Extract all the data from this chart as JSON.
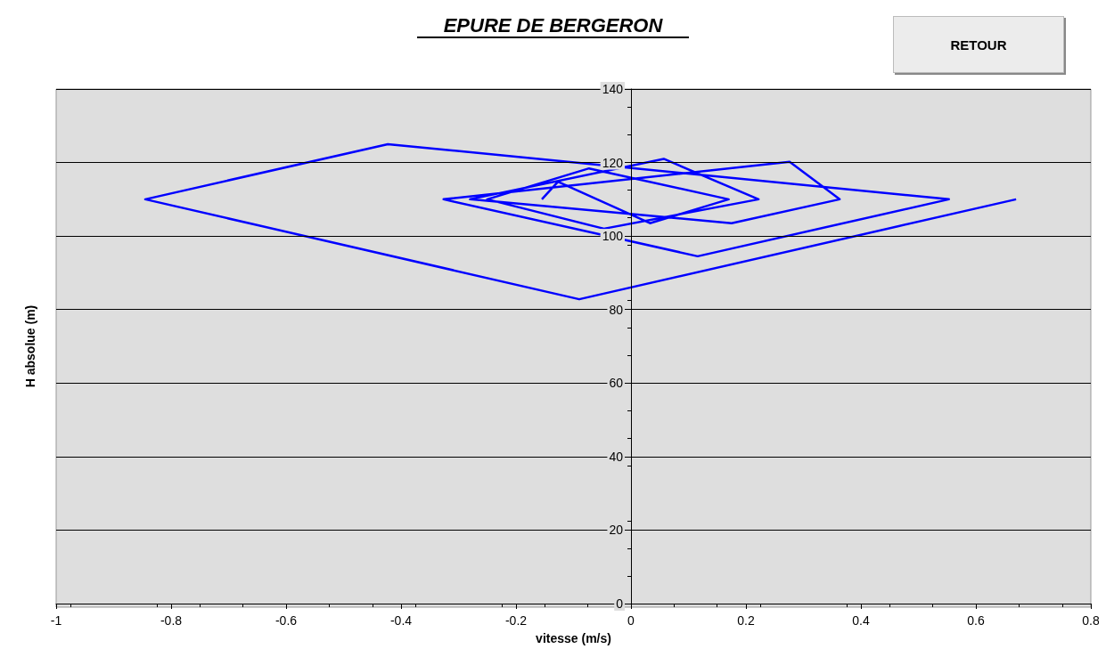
{
  "chart_data": {
    "type": "line",
    "title": "EPURE DE BERGERON",
    "xlabel": "vitesse (m/s)",
    "ylabel": "H absolue (m)",
    "annotations": [
      "RETOUR"
    ],
    "series": [
      {
        "color": "#0000ff",
        "x": [
          0.67,
          -0.09,
          -0.845,
          -0.423,
          0.553,
          0.116,
          -0.326,
          0.276,
          0.363,
          0.175,
          -0.28,
          0.057,
          0.222,
          -0.047,
          -0.25,
          -0.073,
          0.17,
          0.033,
          -0.127,
          -0.155
        ],
        "values": [
          110,
          82.8,
          110,
          125,
          110,
          94.5,
          110,
          120.2,
          110,
          103.5,
          110,
          121,
          110,
          102,
          110,
          118.4,
          110,
          103.5,
          114.8,
          110
        ]
      }
    ],
    "xlim": [
      -1,
      0.8
    ],
    "xticks": [
      -1,
      -0.8,
      -0.6,
      -0.4,
      -0.2,
      0,
      0.2,
      0.4,
      0.6,
      0.8
    ],
    "ylim": [
      0,
      140
    ],
    "yticks": [
      0,
      20,
      40,
      60,
      80,
      100,
      120,
      140
    ],
    "grid": "y",
    "marker": "none",
    "line_style": "solid"
  }
}
